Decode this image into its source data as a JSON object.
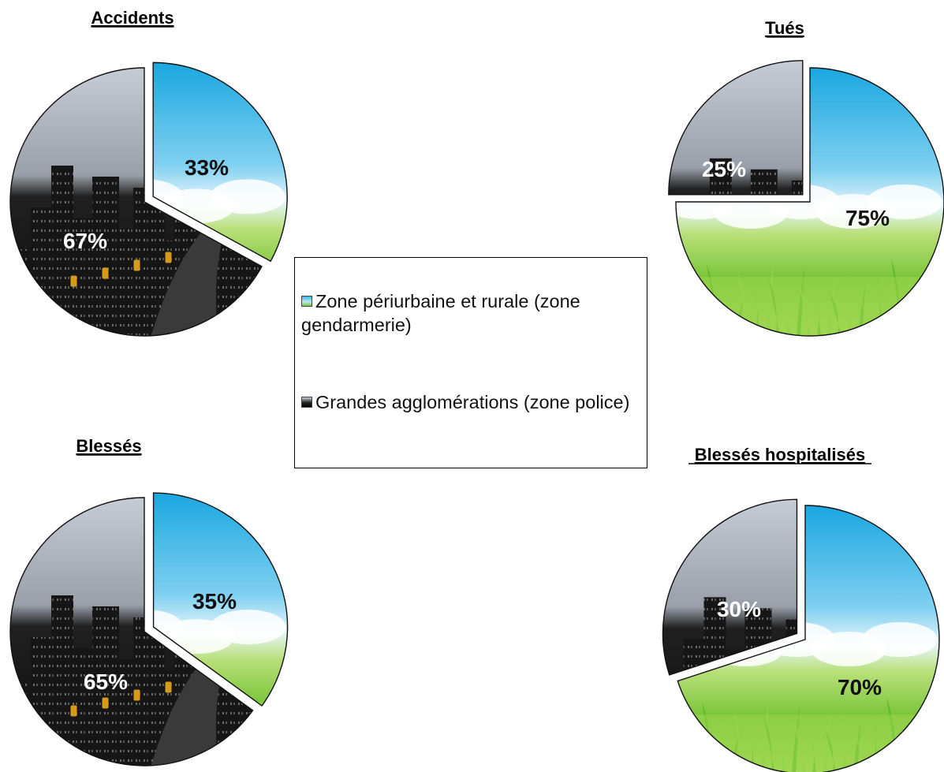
{
  "legend": {
    "items": [
      {
        "key": "rural",
        "label": "Zone périurbaine et rurale (zone gendarmerie)",
        "icon": "sky-grass-swatch-icon"
      },
      {
        "key": "urban",
        "label": "Grandes agglomérations (zone police)",
        "icon": "city-night-swatch-icon"
      }
    ]
  },
  "colors": {
    "sky_top": "#1aa7e0",
    "sky_light": "#cfeef9",
    "grass": "#7cc63b",
    "grass_dark": "#4fa21f",
    "city_sky": "#c6ccd6",
    "building": "#1b1b1b",
    "road": "#3a3a3a",
    "label_on_dark": "#ffffff",
    "label_on_light": "#111111"
  },
  "chart_data": [
    {
      "type": "pie",
      "title": "Accidents",
      "slices": [
        {
          "series": "rural",
          "value": 33,
          "label": "33%"
        },
        {
          "series": "urban",
          "value": 67,
          "label": "67%"
        }
      ]
    },
    {
      "type": "pie",
      "title": "Tués",
      "slices": [
        {
          "series": "rural",
          "value": 75,
          "label": "75%"
        },
        {
          "series": "urban",
          "value": 25,
          "label": "25%"
        }
      ]
    },
    {
      "type": "pie",
      "title": "Blessés",
      "slices": [
        {
          "series": "rural",
          "value": 35,
          "label": "35%"
        },
        {
          "series": "urban",
          "value": 65,
          "label": "65%"
        }
      ]
    },
    {
      "type": "pie",
      "title": "Blessés hospitalisés",
      "slices": [
        {
          "series": "rural",
          "value": 70,
          "label": "70%"
        },
        {
          "series": "urban",
          "value": 30,
          "label": "30%"
        }
      ]
    }
  ]
}
